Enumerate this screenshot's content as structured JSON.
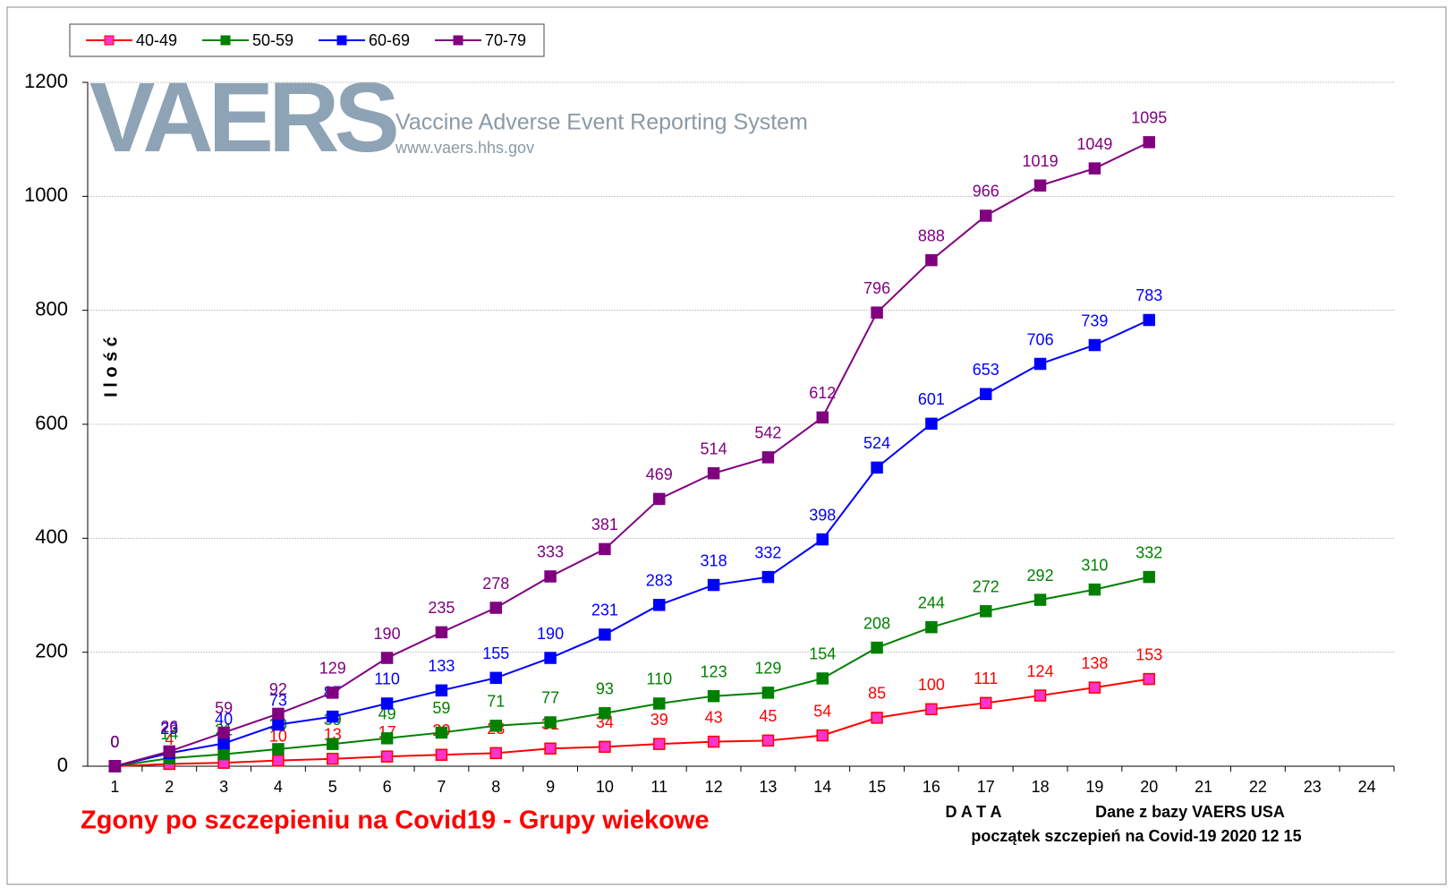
{
  "chart_data": {
    "type": "line",
    "title": "Zgony po szczepieniu na Covid19  - Grupy wiekowe",
    "y_label": "I l o ś ć",
    "x_label": "D A T A",
    "source": "Dane z bazy VAERS  USA",
    "note": "początek szczepień na Covid-19   2020 12 15",
    "logo": {
      "name": "VAERS",
      "full_name": "Vaccine Adverse Event Reporting System",
      "url": "www.vaers.hhs.gov"
    },
    "categories": [
      "1",
      "2",
      "3",
      "4",
      "5",
      "6",
      "7",
      "8",
      "9",
      "10",
      "11",
      "12",
      "13",
      "14",
      "15",
      "16",
      "17",
      "18",
      "19",
      "20",
      "21",
      "22",
      "23",
      "24"
    ],
    "series": [
      {
        "name": "40-49",
        "color": "#ff0000",
        "marker_fill": "#ff33cc",
        "values": [
          0,
          4,
          6,
          10,
          13,
          17,
          20,
          23,
          31,
          34,
          39,
          43,
          45,
          54,
          85,
          100,
          111,
          124,
          138,
          153,
          null,
          null,
          null,
          null
        ]
      },
      {
        "name": "50-59",
        "color": "#008000",
        "marker_fill": "#008000",
        "values": [
          0,
          14,
          21,
          30,
          39,
          49,
          59,
          71,
          77,
          93,
          110,
          123,
          129,
          154,
          208,
          244,
          272,
          292,
          310,
          332,
          null,
          null,
          null,
          null
        ]
      },
      {
        "name": "60-69",
        "color": "#0000ff",
        "marker_fill": "#0000ff",
        "values": [
          0,
          23,
          40,
          73,
          87,
          110,
          133,
          155,
          190,
          231,
          283,
          318,
          332,
          398,
          524,
          601,
          653,
          706,
          739,
          783,
          null,
          null,
          null,
          null
        ]
      },
      {
        "name": "70-79",
        "color": "#800080",
        "marker_fill": "#800080",
        "values": [
          0,
          26,
          59,
          92,
          129,
          190,
          235,
          278,
          333,
          381,
          469,
          514,
          542,
          612,
          796,
          888,
          966,
          1019,
          1049,
          1095,
          null,
          null,
          null,
          null
        ]
      }
    ],
    "ylim": [
      0,
      1200
    ],
    "yticks": [
      0,
      200,
      400,
      600,
      800,
      1000,
      1200
    ],
    "grid": true,
    "legend": "top-left"
  }
}
